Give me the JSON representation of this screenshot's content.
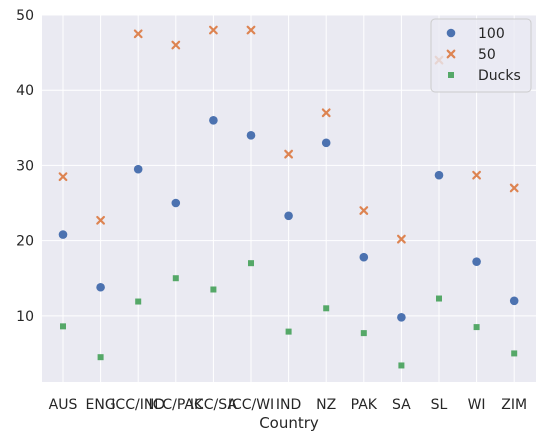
{
  "chart_data": {
    "type": "scatter",
    "xlabel": "Country",
    "ylabel": "",
    "categories": [
      "AUS",
      "ENG",
      "ICC/IND",
      "ICC/PAK",
      "ICC/SA",
      "ICC/WI",
      "IND",
      "NZ",
      "PAK",
      "SA",
      "SL",
      "WI",
      "ZIM"
    ],
    "ylim": [
      1.2,
      50
    ],
    "yticks": [
      10,
      20,
      30,
      40,
      50
    ],
    "grid": true,
    "legend_position": "top-right",
    "series": [
      {
        "name": "100",
        "marker": "circle",
        "color": "#4c72b0",
        "values": [
          20.8,
          13.8,
          29.5,
          25.0,
          36.0,
          34.0,
          23.3,
          33.0,
          17.8,
          9.8,
          28.7,
          17.2,
          12.0
        ]
      },
      {
        "name": "50",
        "marker": "x",
        "color": "#dd8452",
        "values": [
          28.5,
          22.7,
          47.5,
          46.0,
          48.0,
          48.0,
          31.5,
          37.0,
          24.0,
          20.2,
          44.0,
          28.7,
          27.0
        ]
      },
      {
        "name": "Ducks",
        "marker": "square",
        "color": "#55a868",
        "values": [
          8.6,
          4.5,
          11.9,
          15.0,
          13.5,
          17.0,
          7.9,
          11.0,
          7.7,
          3.4,
          12.3,
          8.5,
          5.0
        ]
      }
    ]
  },
  "colors": {
    "plot_bg": "#eaeaf2",
    "grid": "#ffffff"
  }
}
